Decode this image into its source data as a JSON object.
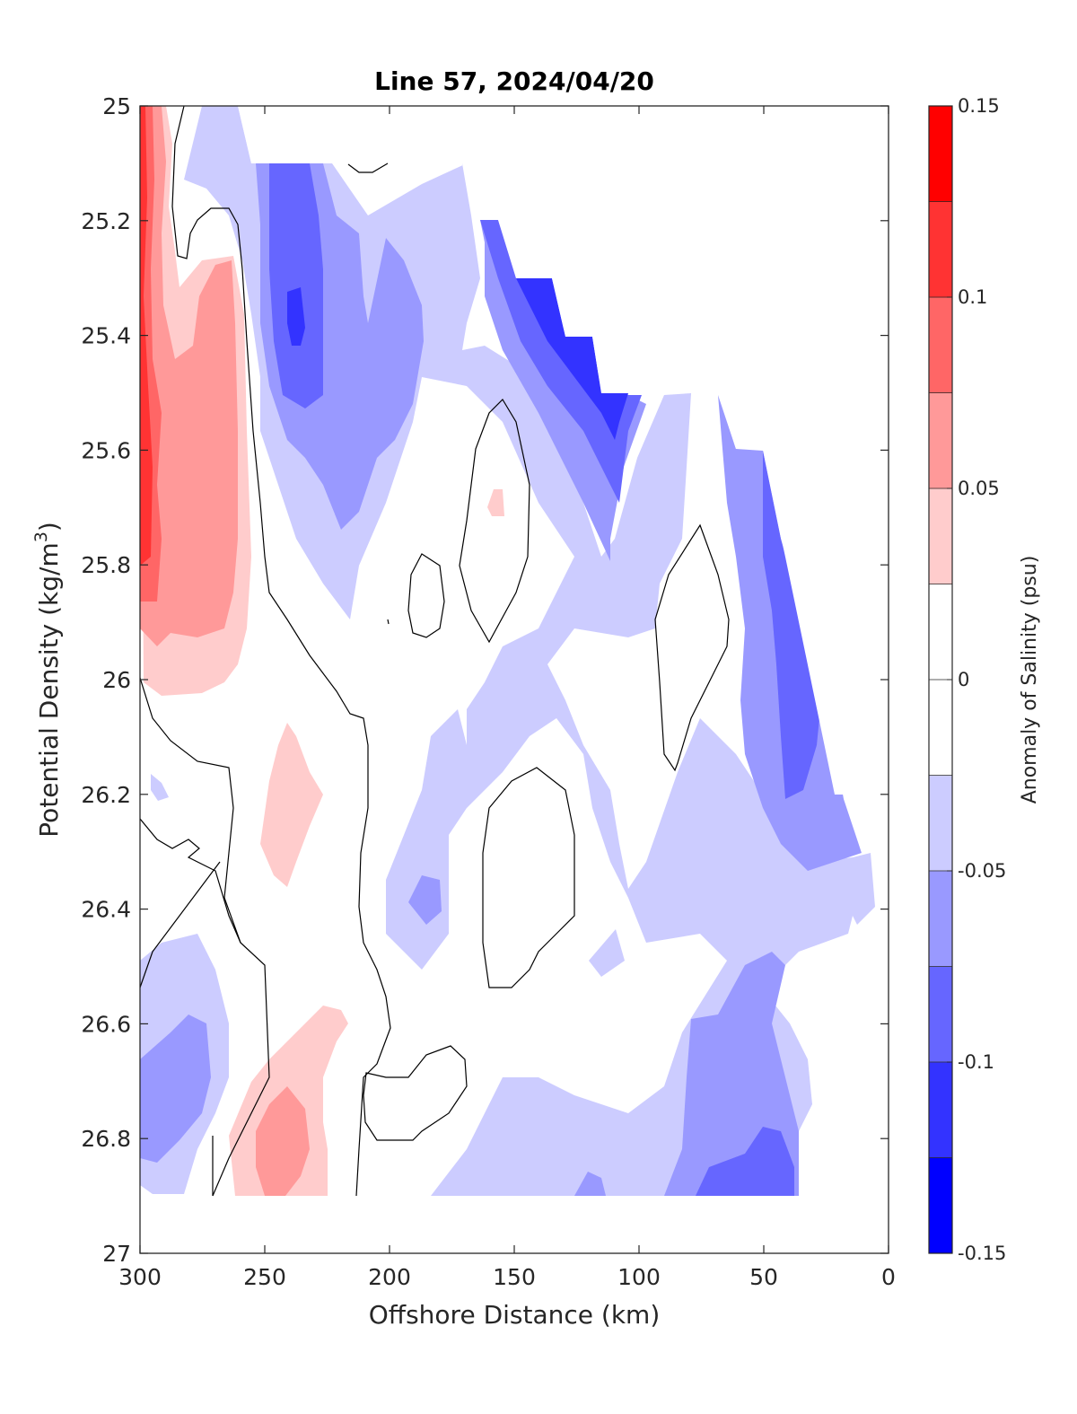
{
  "chart_data": {
    "type": "heatmap",
    "subtype": "filled-contour section",
    "title": "Line 57, 2024/04/20",
    "xlabel": "Offshore Distance (km)",
    "ylabel_main": "Potential Density (kg/m",
    "ylabel_sup": "3",
    "ylabel_close": ")",
    "xlim": [
      300,
      0
    ],
    "x_reversed": true,
    "ylim": [
      25,
      27
    ],
    "y_reversed": true,
    "xticks": [
      "300",
      "250",
      "200",
      "150",
      "100",
      "50",
      "0"
    ],
    "yticks": [
      "25",
      "25.2",
      "25.4",
      "25.6",
      "25.8",
      "26",
      "26.2",
      "26.4",
      "26.6",
      "26.8",
      "27"
    ],
    "colorbar": {
      "label": "Anomaly of Salinity (psu)",
      "range": [
        -0.15,
        0.15
      ],
      "step": 0.025,
      "ticks": [
        "0.15",
        "0.1",
        "0.05",
        "0",
        "-0.05",
        "-0.1",
        "-0.15"
      ],
      "colors": [
        "#0000ff",
        "#3333ff",
        "#6666ff",
        "#9999ff",
        "#ccccff",
        "#ffffff",
        "#ffcccc",
        "#ff9999",
        "#ff6666",
        "#ff3333",
        "#ff0000"
      ]
    },
    "data_coverage": {
      "note_x_km": [
        300,
        250,
        200,
        170,
        160,
        150,
        135,
        125,
        110,
        90,
        62,
        50,
        35,
        25,
        15,
        10
      ],
      "top_density": [
        25.0,
        25.0,
        25.1,
        25.1,
        25.2,
        25.3,
        25.3,
        25.4,
        25.5,
        25.5,
        25.6,
        25.6,
        26.2,
        26.3,
        26.3,
        26.4
      ],
      "bottom_density_max": 26.9
    },
    "features": [
      {
        "label": "0.1",
        "x": [
          300,
          292
        ],
        "y": [
          25.0,
          25.9
        ]
      },
      {
        "label": "0.05",
        "x": [
          300,
          265
        ],
        "y": [
          25.0,
          26.0
        ]
      },
      {
        "label": "-0.1",
        "x": [
          245,
          230
        ],
        "y": [
          25.1,
          25.5
        ]
      },
      {
        "label": "-0.125",
        "x": [
          155,
          110
        ],
        "y": [
          25.3,
          25.55
        ]
      },
      {
        "label": "-0.1",
        "x": [
          50,
          30
        ],
        "y": [
          25.7,
          26.3
        ]
      },
      {
        "label": "0.05",
        "x": [
          255,
          225
        ],
        "y": [
          26.6,
          26.9
        ]
      },
      {
        "label": "-0.1",
        "x": [
          80,
          35
        ],
        "y": [
          26.6,
          26.9
        ]
      }
    ]
  }
}
